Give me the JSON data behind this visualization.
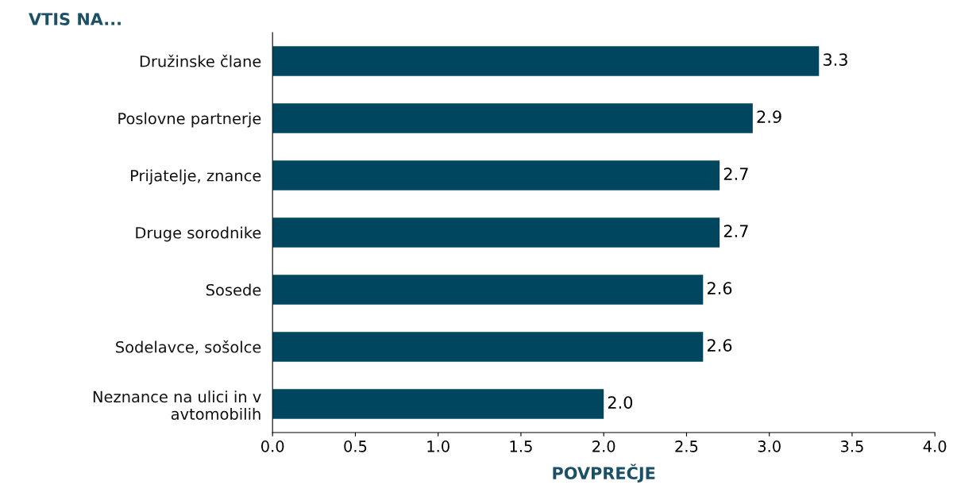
{
  "chart_data": {
    "type": "bar",
    "orientation": "horizontal",
    "title": "VTIS NA...",
    "xlabel": "POVPREČJE",
    "categories": [
      "Družinske člane",
      "Poslovne partnerje",
      "Prijatelje, znance",
      "Druge sorodnike",
      "Sosede",
      "Sodelavce, sošolce",
      "Neznance na ulici in v\navtomobilih"
    ],
    "values": [
      3.3,
      2.9,
      2.7,
      2.7,
      2.6,
      2.6,
      2.0
    ],
    "value_labels": [
      "3.3",
      "2.9",
      "2.7",
      "2.7",
      "2.6",
      "2.6",
      "2.0"
    ],
    "color": "#00465f",
    "xlim": [
      0,
      4
    ],
    "xticks": [
      {
        "value": 0,
        "label": "0.0"
      },
      {
        "value": 0.5,
        "label": "0.5"
      },
      {
        "value": 1,
        "label": "1.0"
      },
      {
        "value": 1.5,
        "label": "1.5"
      },
      {
        "value": 2,
        "label": "2.0"
      },
      {
        "value": 2.5,
        "label": "2.5"
      },
      {
        "value": 3,
        "label": "3.0"
      },
      {
        "value": 3.5,
        "label": "3.5"
      },
      {
        "value": 4,
        "label": "4.0"
      }
    ],
    "grid": false,
    "legend": false
  }
}
